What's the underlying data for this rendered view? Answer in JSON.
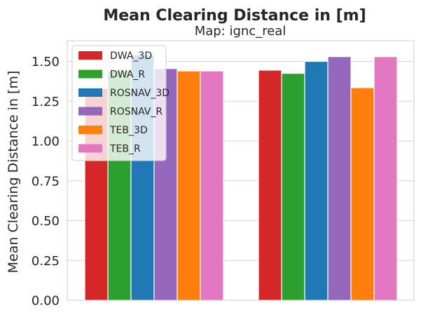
{
  "chart_data": {
    "type": "bar",
    "title": "Mean Clearing Distance in [m]",
    "subtitle": "Map: ignc_real",
    "xlabel": "",
    "ylabel": "Mean Clearing Distance in [m]",
    "ylim": [
      0,
      1.63
    ],
    "yticks": [
      "0.00",
      "0.25",
      "0.50",
      "0.75",
      "1.00",
      "1.25",
      "1.50"
    ],
    "ytick_values": [
      0,
      0.25,
      0.5,
      0.75,
      1.0,
      1.25,
      1.5
    ],
    "categories": [
      "",
      ""
    ],
    "grid": "horizontal",
    "legend_position": "upper-left",
    "series": [
      {
        "name": "DWA_3D",
        "color": "#d62728",
        "values": [
          1.33,
          1.445
        ]
      },
      {
        "name": "DWA_R",
        "color": "#2ca02c",
        "values": [
          1.44,
          1.425
        ]
      },
      {
        "name": "ROSNAV_3D",
        "color": "#1f77b4",
        "values": [
          1.54,
          1.5
        ]
      },
      {
        "name": "ROSNAV_R",
        "color": "#9467bd",
        "values": [
          1.455,
          1.53
        ]
      },
      {
        "name": "TEB_3D",
        "color": "#ff7f0e",
        "values": [
          1.44,
          1.335
        ]
      },
      {
        "name": "TEB_R",
        "color": "#e377c2",
        "values": [
          1.44,
          1.53
        ]
      }
    ]
  }
}
